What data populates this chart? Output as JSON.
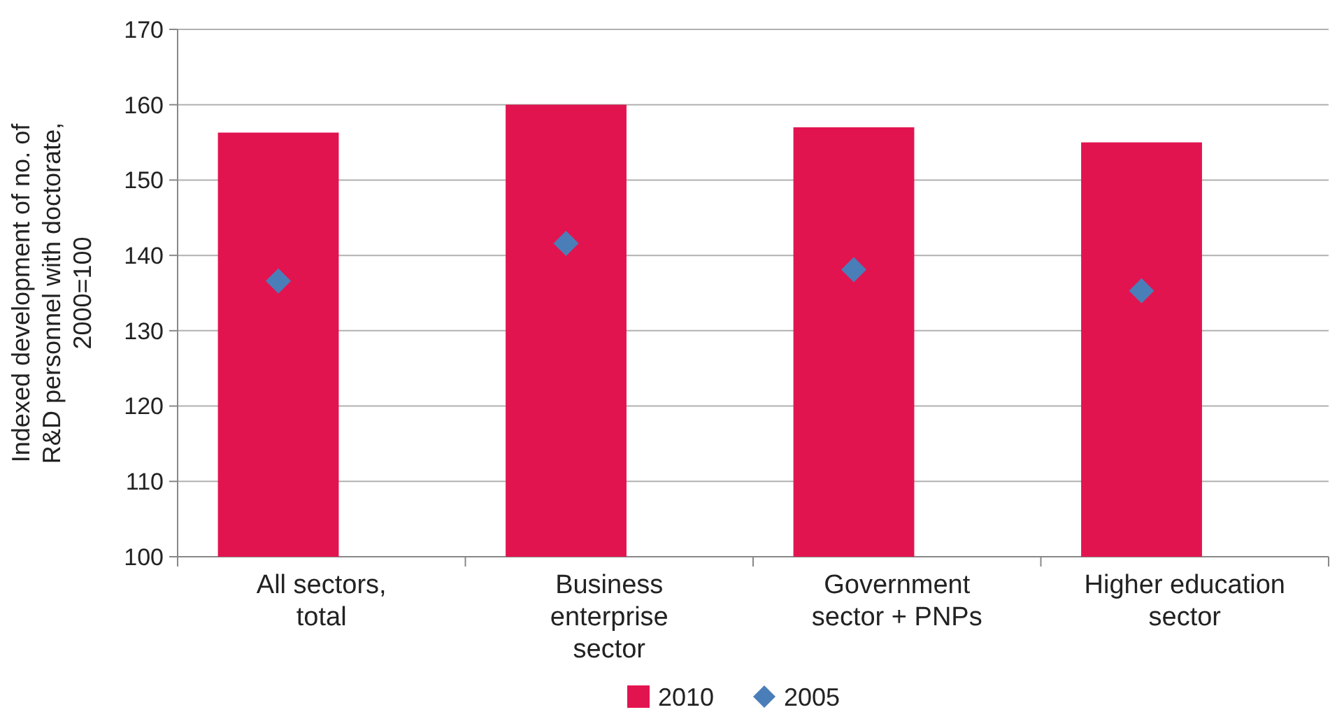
{
  "chart_data": {
    "type": "bar",
    "ylabel": "Indexed development of no. of R&D personnel with doctorate, 2000=100",
    "categories": [
      "All sectors, total",
      "Business enterprise sector",
      "Government sector + PNPs",
      "Higher education sector"
    ],
    "series": [
      {
        "name": "2010",
        "color": "#e2144f",
        "values": [
          156.3,
          160,
          157,
          155
        ]
      },
      {
        "name": "2005",
        "type": "scatter",
        "color": "#4a7eb8",
        "values": [
          136.6,
          141.6,
          138.1,
          135.3
        ]
      }
    ],
    "ylim": [
      100,
      170
    ],
    "yticks": [
      100,
      110,
      120,
      130,
      140,
      150,
      160,
      170
    ],
    "grid": "y",
    "legend": "bottom",
    "marker": "diamond"
  }
}
